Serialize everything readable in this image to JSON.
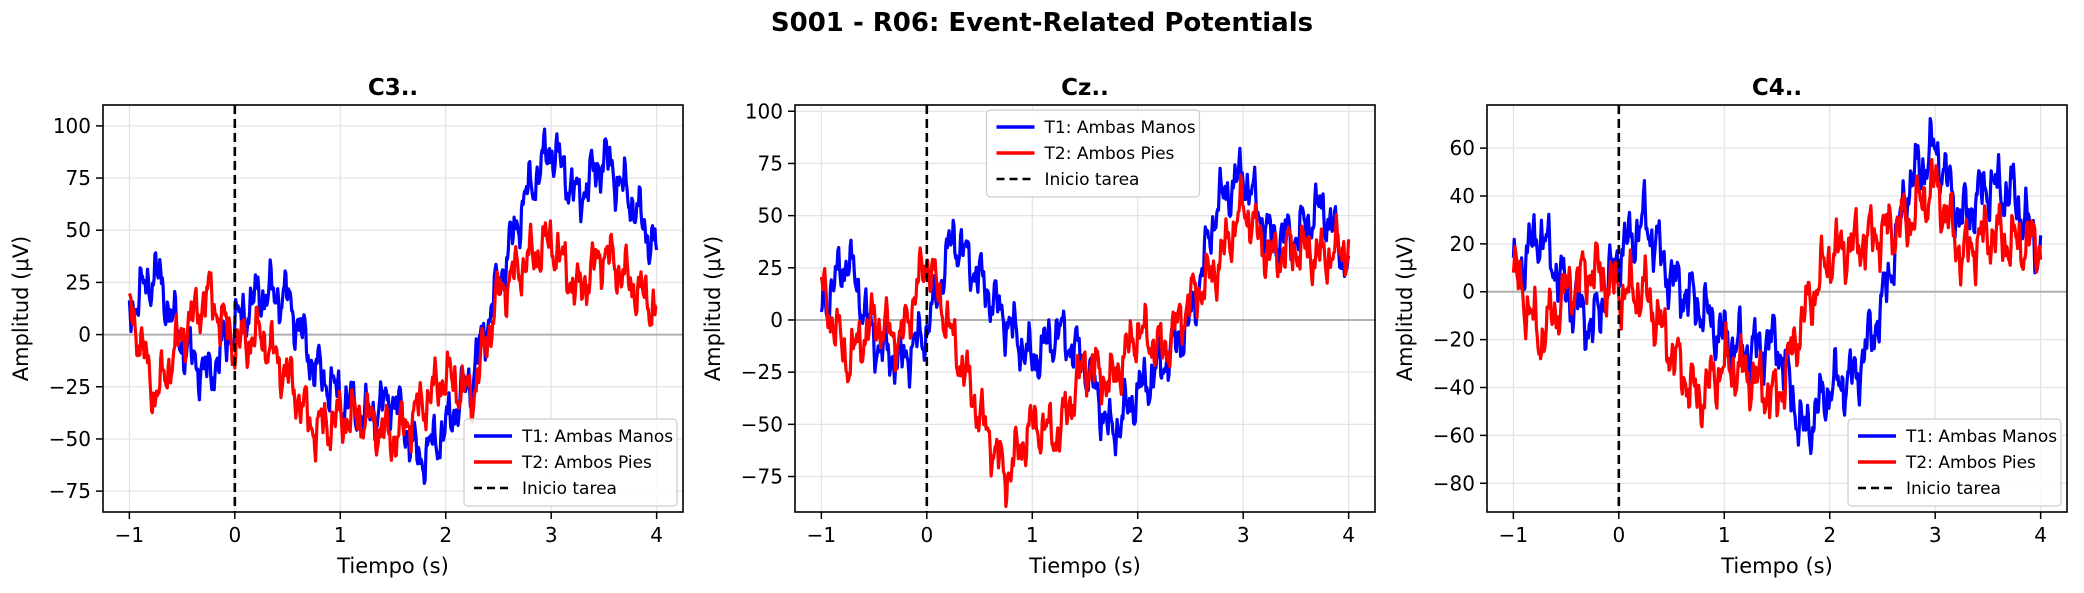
{
  "figure": {
    "title": "S001 - R06: Event-Related Potentials"
  },
  "chart_data": [
    {
      "type": "line",
      "title": "C3..",
      "xlabel": "Tiempo (s)",
      "ylabel": "Amplitud (μV)",
      "xlim": [
        -1.25,
        4.25
      ],
      "ylim": [
        -85,
        110
      ],
      "xticks": [
        -1,
        0,
        1,
        2,
        3,
        4
      ],
      "yticks": [
        -75,
        -50,
        -25,
        0,
        25,
        50,
        75,
        100
      ],
      "grid": true,
      "legend_position": "lower-right",
      "colors": {
        "t1": "#0000ff",
        "t2": "#ff0000",
        "onset": "#000000"
      },
      "series": [
        {
          "name": "T1: Ambas Manos",
          "x": [
            -1.0,
            -0.75,
            -0.5,
            -0.25,
            0.0,
            0.25,
            0.5,
            0.75,
            1.0,
            1.25,
            1.5,
            1.75,
            2.0,
            2.25,
            2.5,
            2.75,
            3.0,
            3.25,
            3.5,
            3.75,
            4.0
          ],
          "values": [
            12,
            30,
            -5,
            -20,
            5,
            20,
            18,
            -15,
            -30,
            -40,
            -30,
            -60,
            -45,
            -20,
            25,
            65,
            90,
            65,
            85,
            65,
            40
          ]
        },
        {
          "name": "T2: Ambos Pies",
          "x": [
            -1.0,
            -0.75,
            -0.5,
            -0.25,
            0.0,
            0.25,
            0.5,
            0.75,
            1.0,
            1.25,
            1.5,
            1.75,
            2.0,
            2.25,
            2.5,
            2.75,
            3.0,
            3.25,
            3.5,
            3.75,
            4.0
          ],
          "values": [
            15,
            -30,
            0,
            20,
            -5,
            0,
            -20,
            -45,
            -40,
            -40,
            -50,
            -35,
            -20,
            -30,
            20,
            35,
            45,
            20,
            40,
            25,
            12
          ]
        }
      ],
      "onset": {
        "name": "Inicio tarea",
        "x": 0
      }
    },
    {
      "type": "line",
      "title": "Cz..",
      "xlabel": "Tiempo (s)",
      "ylabel": "Amplitud (μV)",
      "xlim": [
        -1.25,
        4.25
      ],
      "ylim": [
        -92,
        103
      ],
      "xticks": [
        -1,
        0,
        1,
        2,
        3,
        4
      ],
      "yticks": [
        -75,
        -50,
        -25,
        0,
        25,
        50,
        75,
        100
      ],
      "grid": true,
      "legend_position": "upper-center",
      "colors": {
        "t1": "#0000ff",
        "t2": "#ff0000",
        "onset": "#000000"
      },
      "series": [
        {
          "name": "T1: Ambas Manos",
          "x": [
            -1.0,
            -0.75,
            -0.5,
            -0.25,
            0.0,
            0.25,
            0.5,
            0.75,
            1.0,
            1.25,
            1.5,
            1.75,
            2.0,
            2.25,
            2.5,
            2.75,
            3.0,
            3.25,
            3.5,
            3.75,
            4.0
          ],
          "values": [
            5,
            30,
            -10,
            -20,
            -5,
            40,
            20,
            0,
            -20,
            -5,
            -20,
            -55,
            -35,
            -20,
            0,
            55,
            70,
            40,
            40,
            55,
            25
          ]
        },
        {
          "name": "T2: Ambos Pies",
          "x": [
            -1.0,
            -0.75,
            -0.5,
            -0.25,
            0.0,
            0.25,
            0.5,
            0.75,
            1.0,
            1.25,
            1.5,
            1.75,
            2.0,
            2.25,
            2.5,
            2.75,
            3.0,
            3.25,
            3.5,
            3.75,
            4.0
          ],
          "values": [
            15,
            -20,
            0,
            -10,
            30,
            -10,
            -45,
            -75,
            -50,
            -55,
            -20,
            -30,
            -5,
            -15,
            10,
            25,
            55,
            30,
            35,
            30,
            35
          ]
        }
      ],
      "onset": {
        "name": "Inicio tarea",
        "x": 0
      }
    },
    {
      "type": "line",
      "title": "C4..",
      "xlabel": "Tiempo (s)",
      "ylabel": "Amplitud (μV)",
      "xlim": [
        -1.25,
        4.25
      ],
      "ylim": [
        -92,
        78
      ],
      "xticks": [
        -1,
        0,
        1,
        2,
        3,
        4
      ],
      "yticks": [
        -80,
        -60,
        -40,
        -20,
        0,
        20,
        40,
        60
      ],
      "grid": true,
      "legend_position": "lower-right",
      "colors": {
        "t1": "#0000ff",
        "t2": "#ff0000",
        "onset": "#000000"
      },
      "series": [
        {
          "name": "T1: Ambas Manos",
          "x": [
            -1.0,
            -0.75,
            -0.5,
            -0.25,
            0.0,
            0.25,
            0.5,
            0.75,
            1.0,
            1.25,
            1.5,
            1.75,
            2.0,
            2.25,
            2.5,
            2.75,
            3.0,
            3.25,
            3.5,
            3.75,
            4.0
          ],
          "values": [
            5,
            25,
            0,
            -15,
            15,
            30,
            5,
            -5,
            -20,
            -25,
            -20,
            -60,
            -40,
            -35,
            -5,
            45,
            60,
            30,
            45,
            40,
            15
          ]
        },
        {
          "name": "T2: Ambos Pies",
          "x": [
            -1.0,
            -0.75,
            -0.5,
            -0.25,
            0.0,
            0.25,
            0.5,
            0.75,
            1.0,
            1.25,
            1.5,
            1.75,
            2.0,
            2.25,
            2.5,
            2.75,
            3.0,
            3.25,
            3.5,
            3.75,
            4.0
          ],
          "values": [
            10,
            -20,
            0,
            10,
            0,
            0,
            -25,
            -45,
            -30,
            -35,
            -45,
            -10,
            15,
            20,
            25,
            30,
            45,
            15,
            25,
            20,
            20
          ]
        }
      ],
      "onset": {
        "name": "Inicio tarea",
        "x": 0
      }
    }
  ]
}
